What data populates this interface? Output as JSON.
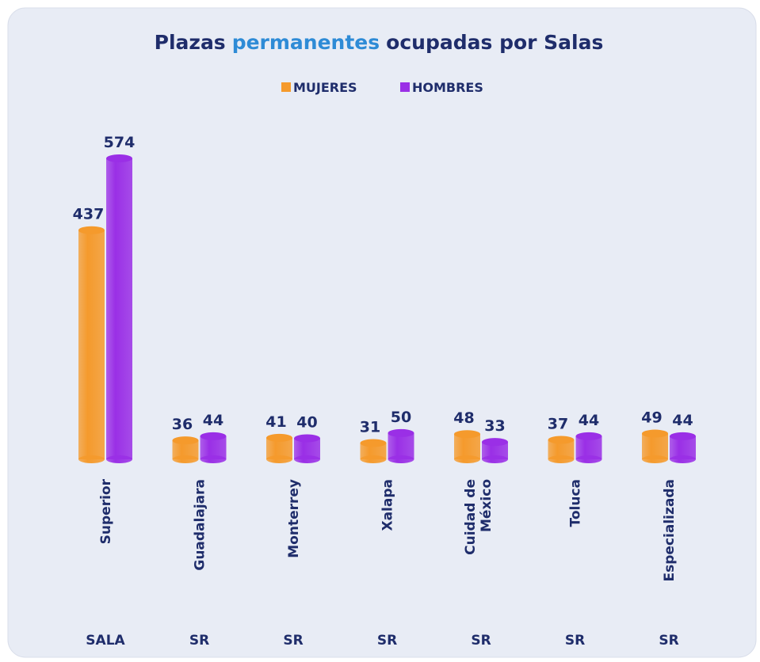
{
  "chart_data": {
    "type": "bar",
    "title": [
      {
        "text": "Plazas",
        "color": "#1f2d6b"
      },
      {
        "text": "permanentes",
        "color": "#2e8bd6"
      },
      {
        "text": "ocupadas por Salas",
        "color": "#1f2d6b"
      }
    ],
    "categories": [
      "Superior",
      "Guadalajara",
      "Monterrey",
      "Xalapa",
      [
        "Cuidad de",
        "México"
      ],
      "Toluca",
      "Especializada"
    ],
    "groups": [
      "SALA",
      "SR",
      "SR",
      "SR",
      "SR",
      "SR",
      "SR"
    ],
    "series": [
      {
        "name": "MUJERES",
        "color": "#f59a2c",
        "values": [
          437,
          36,
          41,
          31,
          48,
          37,
          49
        ]
      },
      {
        "name": "HOMBRES",
        "color": "#9a2fe6",
        "values": [
          574,
          44,
          40,
          50,
          33,
          44,
          44
        ]
      }
    ],
    "legend": "top"
  }
}
